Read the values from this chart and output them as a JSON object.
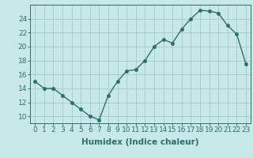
{
  "x": [
    0,
    1,
    2,
    3,
    4,
    5,
    6,
    7,
    8,
    9,
    10,
    11,
    12,
    13,
    14,
    15,
    16,
    17,
    18,
    19,
    20,
    21,
    22,
    23
  ],
  "y": [
    15,
    14,
    14,
    13,
    12,
    11,
    10,
    9.5,
    13,
    15,
    16.5,
    16.7,
    18,
    20,
    21,
    20.5,
    22.5,
    24,
    25.2,
    25.1,
    24.8,
    23,
    21.8,
    17.5
  ],
  "line_color": "#2d6e6e",
  "marker_color": "#2d6e6e",
  "bg_color": "#c8e8e8",
  "grid_color": "#a8cece",
  "xlabel": "Humidex (Indice chaleur)",
  "ylim": [
    9,
    26
  ],
  "xlim": [
    -0.5,
    23.5
  ],
  "yticks": [
    10,
    12,
    14,
    16,
    18,
    20,
    22,
    24
  ],
  "xticks": [
    0,
    1,
    2,
    3,
    4,
    5,
    6,
    7,
    8,
    9,
    10,
    11,
    12,
    13,
    14,
    15,
    16,
    17,
    18,
    19,
    20,
    21,
    22,
    23
  ],
  "xlabel_fontsize": 7.5,
  "tick_fontsize": 6.5,
  "line_width": 1.0,
  "marker_size": 2.5
}
